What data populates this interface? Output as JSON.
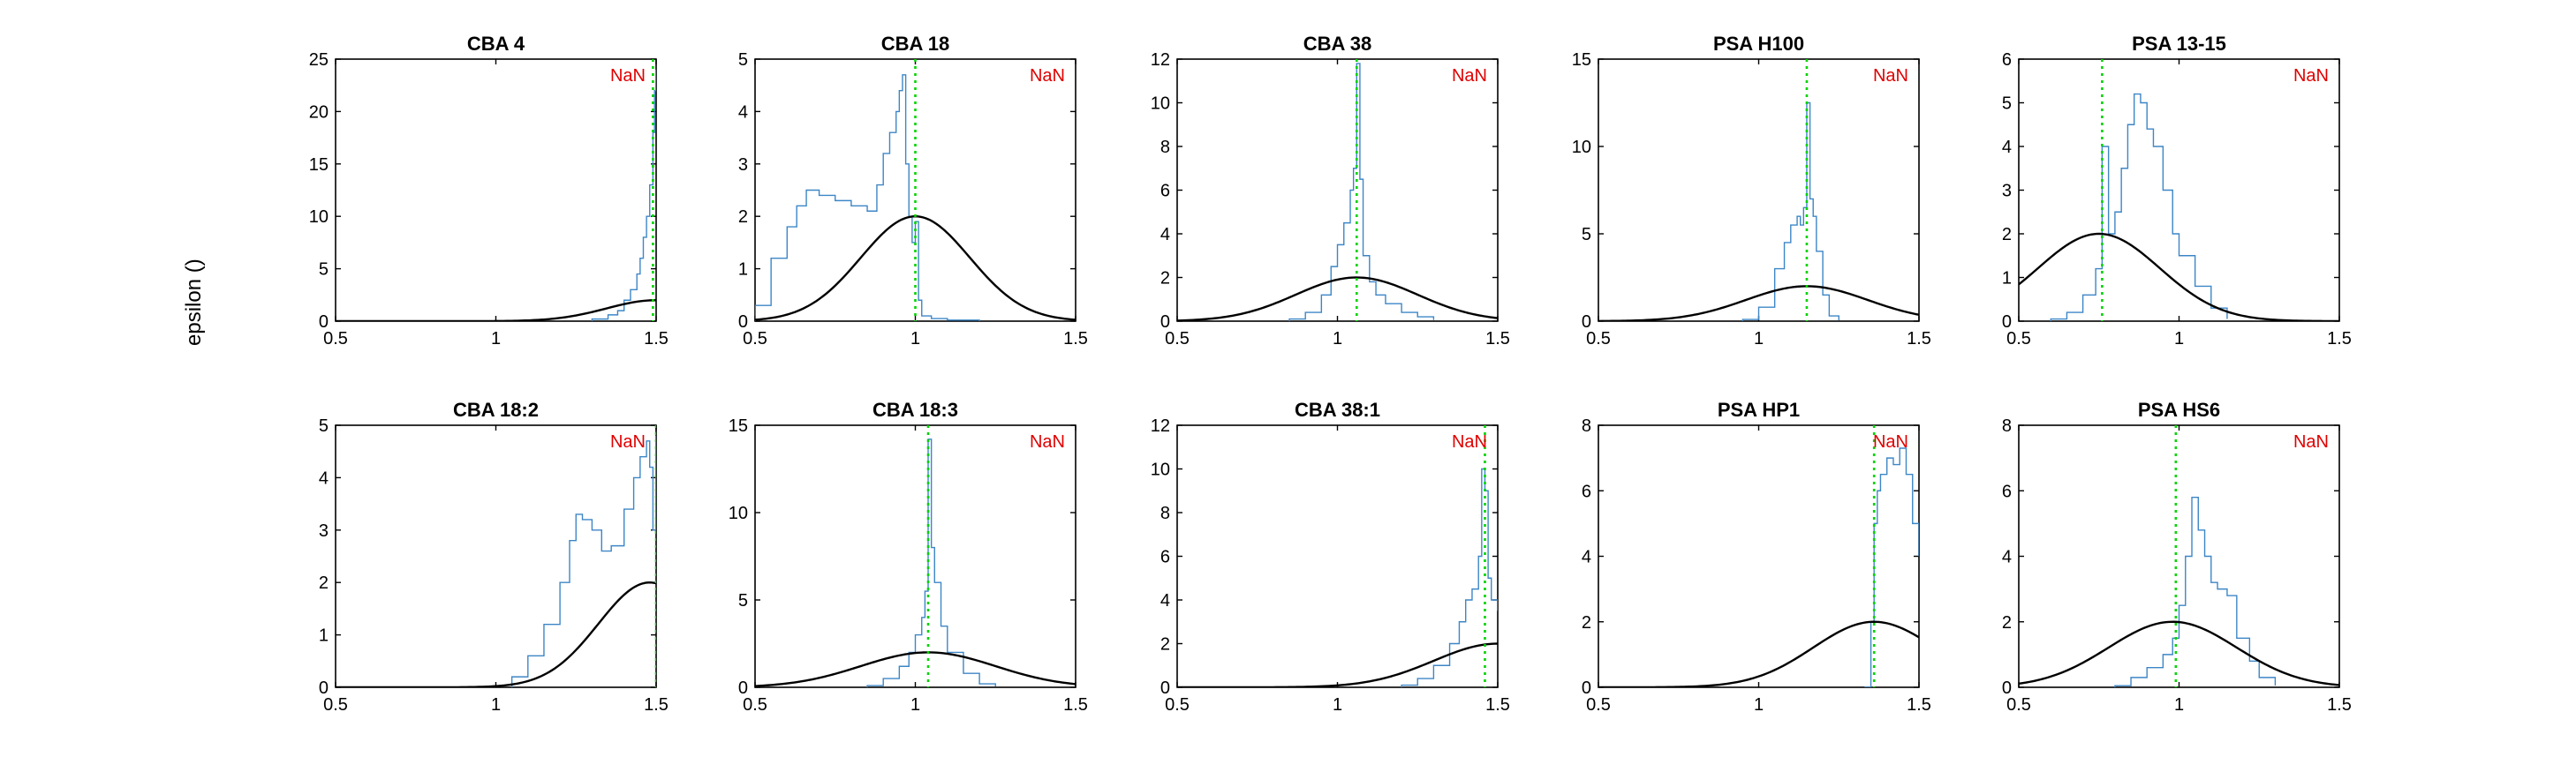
{
  "figure": {
    "ylabel": "epsilon ()",
    "nan_label": "NaN"
  },
  "colors": {
    "histogram": "#3d86c6",
    "curve": "#000000",
    "vline": "#00d400",
    "nan": "#e00000",
    "axis": "#000000"
  },
  "chart_data": [
    {
      "type": "line",
      "title": "CBA 4",
      "xlim": [
        0.5,
        1.5
      ],
      "ylim": [
        0,
        25
      ],
      "xticks": [
        0.5,
        1,
        1.5
      ],
      "xtick_labels": [
        "0.5",
        "1",
        "1.5"
      ],
      "yticks": [
        0,
        5,
        10,
        15,
        20,
        25
      ],
      "ytick_labels": [
        "0",
        "5",
        "10",
        "15",
        "20",
        "25"
      ],
      "vline": 1.49,
      "annotation": "NaN",
      "curve_center": 1.5,
      "curve_sigma": 0.155,
      "series": [
        {
          "kind": "histogram",
          "x": [
            1.3,
            1.35,
            1.38,
            1.4,
            1.42,
            1.44,
            1.45,
            1.46,
            1.47,
            1.48,
            1.49,
            1.495,
            1.5
          ],
          "y": [
            0.2,
            0.6,
            1.0,
            2.0,
            3.0,
            4.5,
            6.0,
            8.0,
            10.0,
            13.0,
            18.0,
            22.0,
            24.0
          ]
        },
        {
          "kind": "gaussian",
          "peak": 2
        }
      ]
    },
    {
      "type": "line",
      "title": "CBA 18",
      "xlim": [
        0.5,
        1.5
      ],
      "ylim": [
        0,
        5
      ],
      "xticks": [
        0.5,
        1,
        1.5
      ],
      "xtick_labels": [
        "0.5",
        "1",
        "1.5"
      ],
      "yticks": [
        0,
        1,
        2,
        3,
        4,
        5
      ],
      "ytick_labels": [
        "0",
        "1",
        "2",
        "3",
        "4",
        "5"
      ],
      "vline": 1.0,
      "annotation": "NaN",
      "curve_center": 1.0,
      "curve_sigma": 0.17,
      "series": [
        {
          "kind": "histogram",
          "x": [
            0.5,
            0.55,
            0.6,
            0.63,
            0.66,
            0.7,
            0.75,
            0.8,
            0.85,
            0.88,
            0.9,
            0.92,
            0.94,
            0.95,
            0.96,
            0.97,
            0.98,
            0.99,
            1.0,
            1.01,
            1.02,
            1.05,
            1.1,
            1.2
          ],
          "y": [
            0.3,
            1.2,
            1.8,
            2.2,
            2.5,
            2.4,
            2.3,
            2.2,
            2.1,
            2.6,
            3.2,
            3.6,
            4.0,
            4.4,
            4.7,
            3.0,
            2.0,
            1.5,
            1.9,
            0.4,
            0.1,
            0.05,
            0.02,
            0.0
          ]
        },
        {
          "kind": "gaussian",
          "peak": 2
        }
      ]
    },
    {
      "type": "line",
      "title": "CBA 38",
      "xlim": [
        0.5,
        1.5
      ],
      "ylim": [
        0,
        12
      ],
      "xticks": [
        0.5,
        1,
        1.5
      ],
      "xtick_labels": [
        "0.5",
        "1",
        "1.5"
      ],
      "yticks": [
        0,
        2,
        4,
        6,
        8,
        10,
        12
      ],
      "ytick_labels": [
        "0",
        "2",
        "4",
        "6",
        "8",
        "10",
        "12"
      ],
      "vline": 1.06,
      "annotation": "NaN",
      "curve_center": 1.06,
      "curve_sigma": 0.19,
      "series": [
        {
          "kind": "histogram",
          "x": [
            0.85,
            0.9,
            0.95,
            0.98,
            1.0,
            1.02,
            1.04,
            1.05,
            1.06,
            1.07,
            1.08,
            1.1,
            1.12,
            1.15,
            1.2,
            1.25,
            1.3
          ],
          "y": [
            0.1,
            0.4,
            1.2,
            2.5,
            3.5,
            4.5,
            6.0,
            7.0,
            11.8,
            6.5,
            3.0,
            1.8,
            1.2,
            0.8,
            0.4,
            0.2,
            0.05
          ]
        },
        {
          "kind": "gaussian",
          "peak": 2
        }
      ]
    },
    {
      "type": "line",
      "title": "PSA H100",
      "xlim": [
        0.5,
        1.5
      ],
      "ylim": [
        0,
        15
      ],
      "xticks": [
        0.5,
        1,
        1.5
      ],
      "xtick_labels": [
        "0.5",
        "1",
        "1.5"
      ],
      "yticks": [
        0,
        5,
        10,
        15
      ],
      "ytick_labels": [
        "0",
        "5",
        "10",
        "15"
      ],
      "vline": 1.15,
      "annotation": "NaN",
      "curve_center": 1.15,
      "curve_sigma": 0.19,
      "series": [
        {
          "kind": "histogram",
          "x": [
            0.95,
            1.0,
            1.05,
            1.08,
            1.1,
            1.12,
            1.13,
            1.14,
            1.15,
            1.16,
            1.17,
            1.18,
            1.2,
            1.22,
            1.25
          ],
          "y": [
            0.1,
            0.8,
            3.0,
            4.5,
            5.5,
            6.0,
            5.5,
            6.5,
            12.5,
            7.0,
            6.0,
            4.0,
            1.5,
            0.3,
            0.05
          ]
        },
        {
          "kind": "gaussian",
          "peak": 2
        }
      ]
    },
    {
      "type": "line",
      "title": "PSA 13-15",
      "xlim": [
        0.5,
        1.5
      ],
      "ylim": [
        0,
        6
      ],
      "xticks": [
        0.5,
        1,
        1.5
      ],
      "xtick_labels": [
        "0.5",
        "1",
        "1.5"
      ],
      "yticks": [
        0,
        1,
        2,
        3,
        4,
        5,
        6
      ],
      "ytick_labels": [
        "0",
        "1",
        "2",
        "3",
        "4",
        "5",
        "6"
      ],
      "vline": 0.76,
      "annotation": "NaN",
      "curve_center": 0.75,
      "curve_sigma": 0.19,
      "series": [
        {
          "kind": "histogram",
          "x": [
            0.6,
            0.65,
            0.7,
            0.74,
            0.76,
            0.78,
            0.8,
            0.82,
            0.84,
            0.86,
            0.88,
            0.9,
            0.92,
            0.95,
            0.98,
            1.0,
            1.05,
            1.1,
            1.15
          ],
          "y": [
            0.05,
            0.2,
            0.6,
            1.2,
            4.0,
            2.0,
            2.5,
            3.5,
            4.5,
            5.2,
            5.0,
            4.4,
            4.0,
            3.0,
            2.0,
            1.5,
            0.8,
            0.3,
            0.05
          ]
        },
        {
          "kind": "gaussian",
          "peak": 2
        }
      ]
    },
    {
      "type": "line",
      "title": "CBA 18:2",
      "xlim": [
        0.5,
        1.5
      ],
      "ylim": [
        0,
        5
      ],
      "xticks": [
        0.5,
        1,
        1.5
      ],
      "xtick_labels": [
        "0.5",
        "1",
        "1.5"
      ],
      "yticks": [
        0,
        1,
        2,
        3,
        4,
        5
      ],
      "ytick_labels": [
        "0",
        "1",
        "2",
        "3",
        "4",
        "5"
      ],
      "vline": 1.5,
      "annotation": "NaN",
      "curve_center": 1.48,
      "curve_sigma": 0.16,
      "series": [
        {
          "kind": "histogram",
          "x": [
            1.05,
            1.1,
            1.15,
            1.2,
            1.23,
            1.25,
            1.27,
            1.3,
            1.33,
            1.36,
            1.4,
            1.43,
            1.45,
            1.47,
            1.48,
            1.49,
            1.5
          ],
          "y": [
            0.2,
            0.6,
            1.2,
            2.0,
            2.8,
            3.3,
            3.2,
            3.0,
            2.6,
            2.7,
            3.4,
            4.0,
            4.4,
            4.7,
            4.2,
            3.0,
            4.8
          ]
        },
        {
          "kind": "gaussian",
          "peak": 2
        }
      ]
    },
    {
      "type": "line",
      "title": "CBA 18:3",
      "xlim": [
        0.5,
        1.5
      ],
      "ylim": [
        0,
        15
      ],
      "xticks": [
        0.5,
        1,
        1.5
      ],
      "xtick_labels": [
        "0.5",
        "1",
        "1.5"
      ],
      "yticks": [
        0,
        5,
        10,
        15
      ],
      "ytick_labels": [
        "0",
        "5",
        "10",
        "15"
      ],
      "vline": 1.04,
      "annotation": "NaN",
      "curve_center": 1.04,
      "curve_sigma": 0.21,
      "series": [
        {
          "kind": "histogram",
          "x": [
            0.85,
            0.9,
            0.95,
            0.98,
            1.0,
            1.02,
            1.03,
            1.04,
            1.05,
            1.06,
            1.08,
            1.1,
            1.15,
            1.2,
            1.25
          ],
          "y": [
            0.1,
            0.5,
            1.2,
            2.0,
            3.0,
            4.0,
            5.5,
            14.2,
            8.0,
            6.0,
            3.5,
            2.0,
            0.8,
            0.2,
            0.05
          ]
        },
        {
          "kind": "gaussian",
          "peak": 2
        }
      ]
    },
    {
      "type": "line",
      "title": "CBA 38:1",
      "xlim": [
        0.5,
        1.5
      ],
      "ylim": [
        0,
        12
      ],
      "xticks": [
        0.5,
        1,
        1.5
      ],
      "xtick_labels": [
        "0.5",
        "1",
        "1.5"
      ],
      "yticks": [
        0,
        2,
        4,
        6,
        8,
        10,
        12
      ],
      "ytick_labels": [
        "0",
        "2",
        "4",
        "6",
        "8",
        "10",
        "12"
      ],
      "vline": 1.46,
      "annotation": "NaN",
      "curve_center": 1.5,
      "curve_sigma": 0.2,
      "series": [
        {
          "kind": "histogram",
          "x": [
            1.2,
            1.25,
            1.3,
            1.35,
            1.38,
            1.4,
            1.42,
            1.44,
            1.45,
            1.46,
            1.47,
            1.48,
            1.5
          ],
          "y": [
            0.1,
            0.4,
            1.0,
            2.0,
            3.0,
            4.0,
            4.5,
            6.0,
            10.0,
            9.0,
            5.0,
            4.0,
            3.5
          ]
        },
        {
          "kind": "gaussian",
          "peak": 2
        }
      ]
    },
    {
      "type": "line",
      "title": "PSA HP1",
      "xlim": [
        0.5,
        1.5
      ],
      "ylim": [
        0,
        8
      ],
      "xticks": [
        0.5,
        1,
        1.5
      ],
      "xtick_labels": [
        "0.5",
        "1",
        "1.5"
      ],
      "yticks": [
        0,
        2,
        4,
        6,
        8
      ],
      "ytick_labels": [
        "0",
        "2",
        "4",
        "6",
        "8"
      ],
      "vline": 1.36,
      "annotation": "NaN",
      "curve_center": 1.36,
      "curve_sigma": 0.19,
      "series": [
        {
          "kind": "histogram",
          "x": [
            1.33,
            1.35,
            1.36,
            1.37,
            1.38,
            1.4,
            1.42,
            1.44,
            1.46,
            1.48,
            1.5
          ],
          "y": [
            0.0,
            2.0,
            5.0,
            6.0,
            6.5,
            7.0,
            6.8,
            7.3,
            6.5,
            5.0,
            4.0
          ]
        },
        {
          "kind": "gaussian",
          "peak": 2
        }
      ]
    },
    {
      "type": "line",
      "title": "PSA HS6",
      "xlim": [
        0.5,
        1.5
      ],
      "ylim": [
        0,
        8
      ],
      "xticks": [
        0.5,
        1,
        1.5
      ],
      "xtick_labels": [
        "0.5",
        "1",
        "1.5"
      ],
      "yticks": [
        0,
        2,
        4,
        6,
        8
      ],
      "ytick_labels": [
        "0",
        "2",
        "4",
        "6",
        "8"
      ],
      "vline": 0.99,
      "annotation": "NaN",
      "curve_center": 0.98,
      "curve_sigma": 0.2,
      "series": [
        {
          "kind": "histogram",
          "x": [
            0.8,
            0.85,
            0.9,
            0.95,
            0.98,
            1.0,
            1.02,
            1.04,
            1.06,
            1.08,
            1.1,
            1.12,
            1.15,
            1.18,
            1.22,
            1.25,
            1.3
          ],
          "y": [
            0.05,
            0.3,
            0.6,
            1.0,
            1.5,
            2.5,
            4.0,
            5.8,
            4.8,
            4.0,
            3.2,
            3.0,
            2.8,
            1.5,
            0.8,
            0.3,
            0.05
          ]
        },
        {
          "kind": "gaussian",
          "peak": 2
        }
      ]
    }
  ]
}
